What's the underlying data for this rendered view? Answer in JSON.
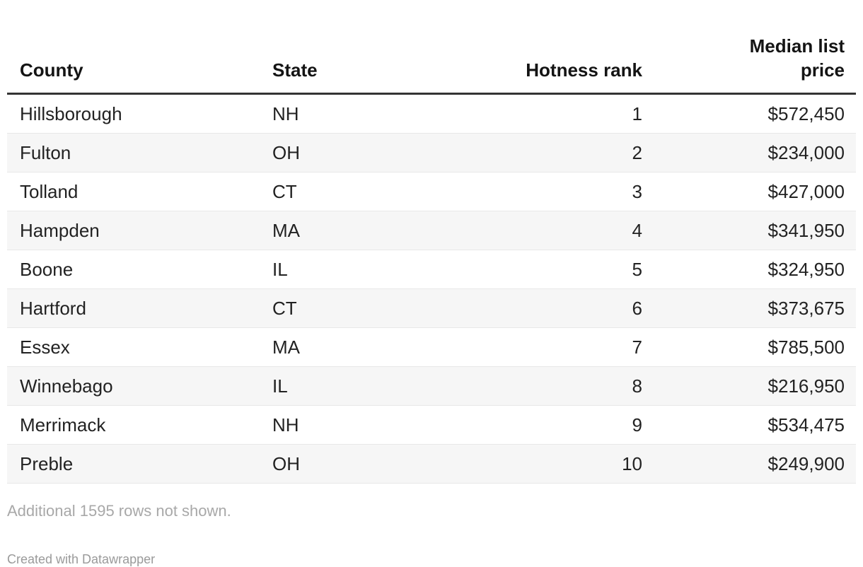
{
  "chart_data": {
    "type": "table",
    "columns": [
      {
        "label": "County",
        "align": "left"
      },
      {
        "label": "State",
        "align": "left"
      },
      {
        "label": "Hotness rank",
        "align": "right"
      },
      {
        "label": "Median list price",
        "align": "right"
      }
    ],
    "rows": [
      {
        "county": "Hillsborough",
        "state": "NH",
        "rank": "1",
        "price": "$572,450"
      },
      {
        "county": "Fulton",
        "state": "OH",
        "rank": "2",
        "price": "$234,000"
      },
      {
        "county": "Tolland",
        "state": "CT",
        "rank": "3",
        "price": "$427,000"
      },
      {
        "county": "Hampden",
        "state": "MA",
        "rank": "4",
        "price": "$341,950"
      },
      {
        "county": "Boone",
        "state": "IL",
        "rank": "5",
        "price": "$324,950"
      },
      {
        "county": "Hartford",
        "state": "CT",
        "rank": "6",
        "price": "$373,675"
      },
      {
        "county": "Essex",
        "state": "MA",
        "rank": "7",
        "price": "$785,500"
      },
      {
        "county": "Winnebago",
        "state": "IL",
        "rank": "8",
        "price": "$216,950"
      },
      {
        "county": "Merrimack",
        "state": "NH",
        "rank": "9",
        "price": "$534,475"
      },
      {
        "county": "Preble",
        "state": "OH",
        "rank": "10",
        "price": "$249,900"
      }
    ]
  },
  "footer": {
    "rows_note": "Additional 1595 rows not shown.",
    "credit": "Created with Datawrapper"
  },
  "colors": {
    "header_text": "#141414",
    "body_text": "#222222",
    "header_rule": "#333333",
    "row_divider": "#e8e8e8",
    "stripe": "#f6f6f6",
    "note_gray": "#a8a8a8",
    "credit_gray": "#9a9a9a",
    "background": "#ffffff"
  }
}
